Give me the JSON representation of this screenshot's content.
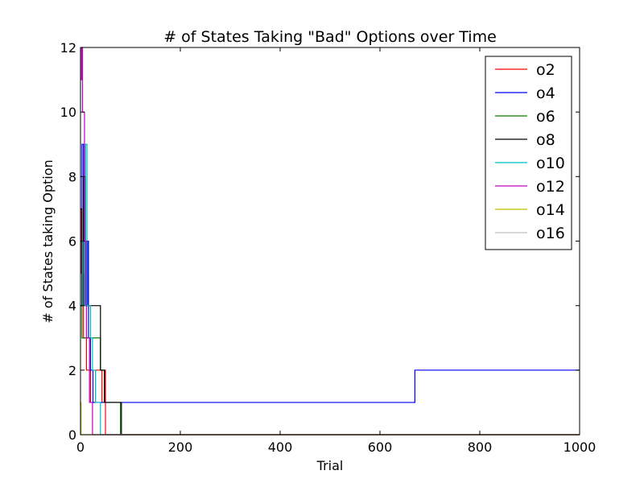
{
  "chart_data": {
    "type": "line",
    "title": "# of States Taking \"Bad\" Options over Time",
    "xlabel": "Trial",
    "ylabel": "# of States taking Option",
    "xlim": [
      0,
      1000
    ],
    "ylim": [
      0,
      12
    ],
    "xticks": [
      0,
      200,
      400,
      600,
      800,
      1000
    ],
    "yticks": [
      0,
      2,
      4,
      6,
      8,
      10,
      12
    ],
    "grid": false,
    "legend_position": "top-right",
    "series": [
      {
        "name": "o2",
        "color": "#ff0000",
        "points": [
          [
            0,
            7
          ],
          [
            2,
            7
          ],
          [
            2,
            5
          ],
          [
            6,
            5
          ],
          [
            6,
            3
          ],
          [
            12,
            3
          ],
          [
            12,
            2
          ],
          [
            20,
            2
          ],
          [
            20,
            1
          ],
          [
            30,
            1
          ],
          [
            30,
            2
          ],
          [
            43,
            2
          ],
          [
            43,
            1
          ],
          [
            48,
            1
          ],
          [
            48,
            2
          ],
          [
            50,
            2
          ],
          [
            50,
            0
          ],
          [
            1000,
            0
          ]
        ]
      },
      {
        "name": "o4",
        "color": "#0000ff",
        "points": [
          [
            0,
            4
          ],
          [
            3,
            4
          ],
          [
            3,
            9
          ],
          [
            6,
            9
          ],
          [
            6,
            6
          ],
          [
            9,
            6
          ],
          [
            9,
            4
          ],
          [
            14,
            4
          ],
          [
            14,
            6
          ],
          [
            16,
            6
          ],
          [
            16,
            3
          ],
          [
            20,
            3
          ],
          [
            20,
            2
          ],
          [
            25,
            2
          ],
          [
            25,
            1
          ],
          [
            670,
            1
          ],
          [
            670,
            2
          ],
          [
            1000,
            2
          ]
        ]
      },
      {
        "name": "o6",
        "color": "#008000",
        "points": [
          [
            0,
            4
          ],
          [
            3,
            4
          ],
          [
            3,
            3
          ],
          [
            40,
            3
          ],
          [
            40,
            2
          ],
          [
            48,
            2
          ],
          [
            48,
            1
          ],
          [
            80,
            1
          ],
          [
            80,
            0
          ],
          [
            1000,
            0
          ]
        ]
      },
      {
        "name": "o8",
        "color": "#000000",
        "points": [
          [
            0,
            7
          ],
          [
            3,
            7
          ],
          [
            3,
            4
          ],
          [
            6,
            4
          ],
          [
            6,
            8
          ],
          [
            10,
            8
          ],
          [
            10,
            4
          ],
          [
            40,
            4
          ],
          [
            40,
            2
          ],
          [
            48,
            2
          ],
          [
            48,
            1
          ],
          [
            82,
            1
          ],
          [
            82,
            0
          ],
          [
            1000,
            0
          ]
        ]
      },
      {
        "name": "o10",
        "color": "#00bfbf",
        "points": [
          [
            0,
            6
          ],
          [
            4,
            6
          ],
          [
            4,
            4
          ],
          [
            10,
            4
          ],
          [
            10,
            9
          ],
          [
            13,
            9
          ],
          [
            13,
            4
          ],
          [
            20,
            4
          ],
          [
            20,
            3
          ],
          [
            24,
            3
          ],
          [
            24,
            2
          ],
          [
            30,
            2
          ],
          [
            30,
            1
          ],
          [
            40,
            1
          ],
          [
            40,
            0
          ],
          [
            1000,
            0
          ]
        ]
      },
      {
        "name": "o12",
        "color": "#bf00bf",
        "points": [
          [
            0,
            11
          ],
          [
            2,
            11
          ],
          [
            2,
            12
          ],
          [
            4,
            12
          ],
          [
            4,
            10
          ],
          [
            8,
            10
          ],
          [
            8,
            6
          ],
          [
            12,
            6
          ],
          [
            12,
            3
          ],
          [
            18,
            3
          ],
          [
            18,
            1
          ],
          [
            24,
            1
          ],
          [
            24,
            0
          ],
          [
            1000,
            0
          ]
        ]
      },
      {
        "name": "o14",
        "color": "#bfbf00",
        "points": [
          [
            0,
            1
          ],
          [
            1,
            1
          ],
          [
            1,
            0
          ],
          [
            1000,
            0
          ]
        ]
      },
      {
        "name": "o16",
        "color": "#bfbfbf",
        "points": [
          [
            0,
            0
          ],
          [
            1000,
            0
          ]
        ]
      }
    ]
  }
}
